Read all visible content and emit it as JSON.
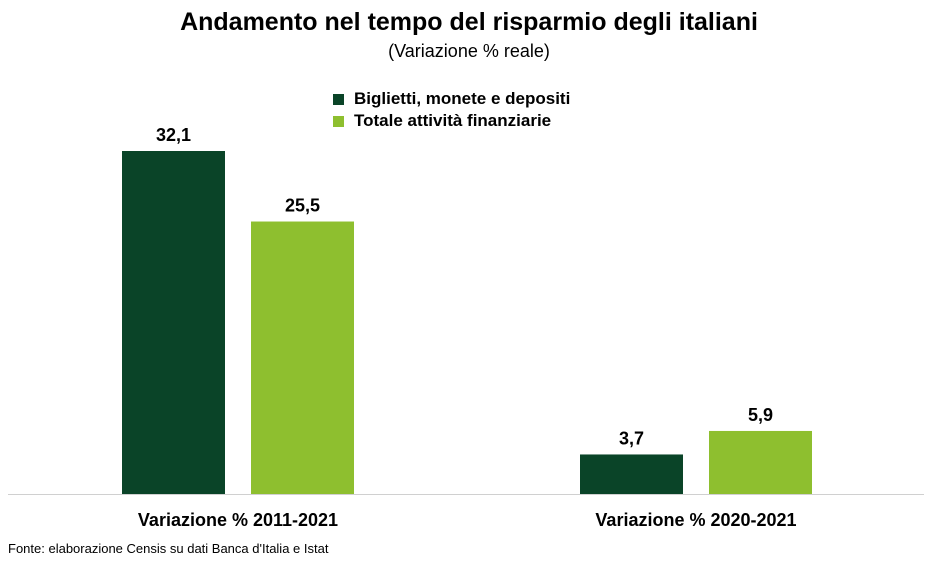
{
  "chart_data": {
    "type": "bar",
    "title": "Andamento nel tempo del risparmio degli italiani",
    "subtitle": "(Variazione % reale)",
    "categories": [
      "Variazione % 2011-2021",
      "Variazione % 2020-2021"
    ],
    "series": [
      {
        "name": "Biglietti, monete e depositi",
        "values": [
          32.1,
          3.7
        ],
        "labels": [
          "32,1",
          "3,7"
        ],
        "color": "#0a4428"
      },
      {
        "name": "Totale attività finanziarie",
        "values": [
          25.5,
          5.9
        ],
        "labels": [
          "25,5",
          "5,9"
        ],
        "color": "#8ebf2f"
      }
    ],
    "ylim": [
      0,
      32.1
    ],
    "grid": false,
    "legend_position": "top-center",
    "source": "Fonte: elaborazione Censis su dati Banca d'Italia e Istat"
  }
}
